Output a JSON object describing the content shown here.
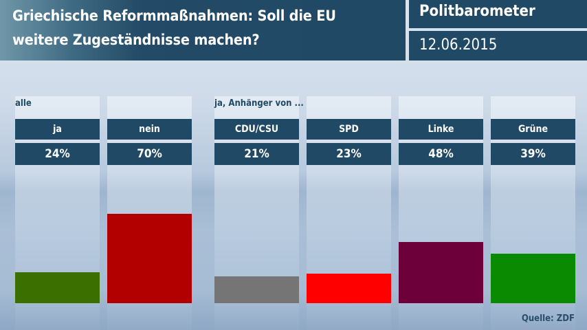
{
  "header": {
    "title_line1": "Griechische Reformmaßnahmen: Soll die EU",
    "title_line2": "weitere Zugeständnisse machen?",
    "brand": "Politbarometer",
    "date": "12.06.2015"
  },
  "groups": {
    "all": "alle",
    "supporters": "ja, Anhänger von ..."
  },
  "source": "Quelle: ZDF",
  "chart_data": {
    "type": "bar",
    "title": "Griechische Reformmaßnahmen: Soll die EU weitere Zugeständnisse machen?",
    "categories": [
      "ja",
      "nein",
      "CDU/CSU",
      "SPD",
      "Linke",
      "Grüne"
    ],
    "values": [
      24,
      70,
      21,
      23,
      48,
      39
    ],
    "value_labels": [
      "24%",
      "70%",
      "21%",
      "23%",
      "48%",
      "39%"
    ],
    "colors": [
      "#3b7000",
      "#b20000",
      "#757575",
      "#ff0000",
      "#6d003a",
      "#0a8a00"
    ],
    "group_labels": [
      "alle",
      "ja, Anhänger von ..."
    ],
    "unit": "%",
    "ylim": [
      0,
      100
    ],
    "grid": false
  }
}
